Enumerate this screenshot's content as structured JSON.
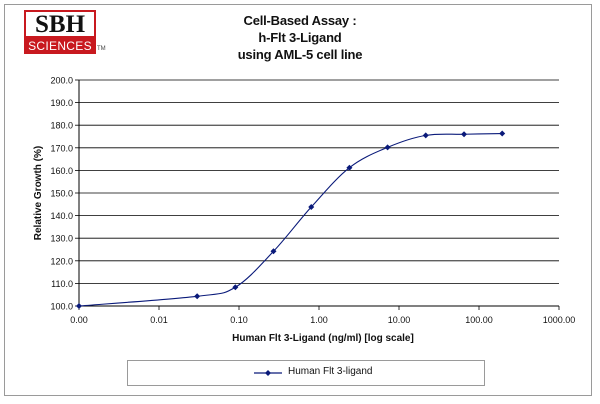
{
  "logo": {
    "line1": "SBH",
    "line2": "SCIENCES",
    "trademark": "TM"
  },
  "colors": {
    "series": "#0a1a7a",
    "grid": "#000000",
    "logo_red": "#c8191f"
  },
  "chart_data": {
    "type": "line",
    "title_lines": [
      "Cell-Based Assay :",
      "h-Flt 3-Ligand",
      "using AML-5 cell line"
    ],
    "xlabel": "Human Flt 3-Ligand (ng/ml) [log scale]",
    "ylabel": "Relative Growth (%)",
    "x_scale": "log",
    "x_axis_start": 0.001,
    "xlim": [
      0.001,
      1000
    ],
    "x_tick_values": [
      0.001,
      0.01,
      0.1,
      1,
      10,
      100,
      1000
    ],
    "x_tick_labels": [
      "0.00",
      "0.01",
      "0.10",
      "1.00",
      "10.00",
      "100.00",
      "1000.00"
    ],
    "ylim": [
      100,
      200
    ],
    "y_tick_values": [
      100,
      110,
      120,
      130,
      140,
      150,
      160,
      170,
      180,
      190,
      200
    ],
    "y_tick_labels": [
      "100.0",
      "110.0",
      "120.0",
      "130.0",
      "140.0",
      "150.0",
      "160.0",
      "170.0",
      "180.0",
      "190.0",
      "200.0"
    ],
    "grid": "horizontal",
    "legend_position": "bottom",
    "series": [
      {
        "name": "Human Flt 3-ligand",
        "marker": "diamond",
        "smooth": true,
        "x": [
          0.001,
          0.03,
          0.09,
          0.27,
          0.8,
          2.4,
          7.2,
          21.6,
          65,
          195
        ],
        "y": [
          100.0,
          104.3,
          108.3,
          124.2,
          143.8,
          161.2,
          170.2,
          175.5,
          176.0,
          176.3
        ]
      }
    ]
  }
}
